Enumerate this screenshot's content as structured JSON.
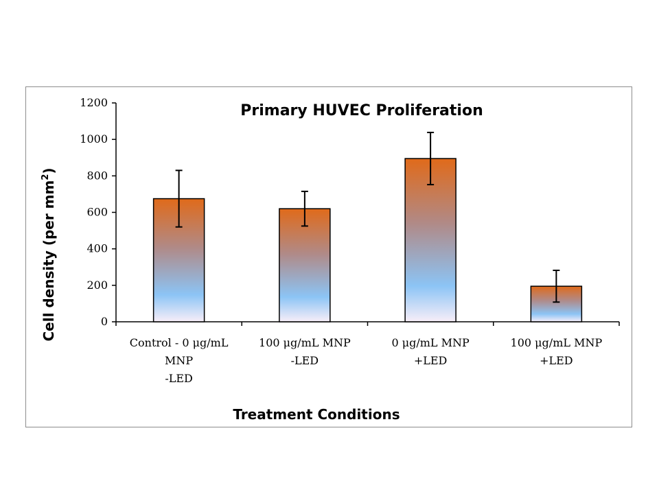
{
  "chart_data": {
    "type": "bar",
    "title": "Primary HUVEC Proliferation",
    "xlabel": "Treatment Conditions",
    "ylabel": "Cell density (per mm",
    "ylabel_superscript": "2",
    "ylabel_suffix": ")",
    "ylim": [
      0,
      1200
    ],
    "yticks": [
      "0",
      "200",
      "400",
      "600",
      "800",
      "1000",
      "1200"
    ],
    "categories": [
      [
        "Control - 0 μg/mL",
        "MNP",
        "-LED"
      ],
      [
        "100 μg/mL MNP",
        "-LED"
      ],
      [
        "0 μg/mL MNP",
        "+LED"
      ],
      [
        "100 μg/mL MNP",
        "+LED"
      ]
    ],
    "values": [
      675,
      620,
      895,
      195
    ],
    "error": [
      155,
      95,
      143,
      87
    ],
    "grid": false,
    "legend": "none",
    "colors": {
      "bar_top": "#e06a1a",
      "bar_mid": "#b08a88",
      "bar_blue": "#8cc4f5",
      "bar_bottom": "#f8eef8",
      "bar_edge": "#000000"
    }
  }
}
